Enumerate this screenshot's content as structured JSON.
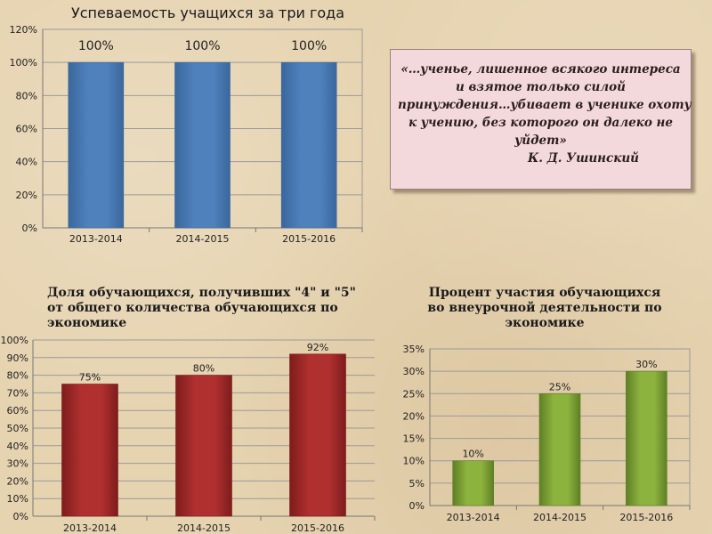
{
  "quote": {
    "lines": [
      "«…ученье, лишенное всякого интереса",
      "и взятое только силой",
      "принуждения…убивает в ученике охоту",
      "к учению, без которого он далеко не",
      "уйдет»"
    ],
    "author": "К. Д. Ушинский"
  },
  "chart_data": [
    {
      "type": "bar",
      "title": "Успеваемость учащихся за три года",
      "categories": [
        "2013-2014",
        "2014-2015",
        "2015-2016"
      ],
      "values": [
        100,
        100,
        100
      ],
      "data_labels": [
        "100%",
        "100%",
        "100%"
      ],
      "yticks": [
        "0%",
        "20%",
        "40%",
        "60%",
        "80%",
        "100%",
        "120%"
      ],
      "ylim": [
        0,
        120
      ],
      "grid": true,
      "color": "#4f81bd",
      "color_dark": "#3a679c"
    },
    {
      "type": "bar",
      "title": [
        "Доля обучающихся, получивших \"4\" и \"5\"",
        "от общего количества обучающихся по",
        "экономике"
      ],
      "categories": [
        "2013-2014",
        "2014-2015",
        "2015-2016"
      ],
      "values": [
        75,
        80,
        92
      ],
      "data_labels": [
        "75%",
        "80%",
        "92%"
      ],
      "yticks": [
        "0%",
        "10%",
        "20%",
        "30%",
        "40%",
        "50%",
        "60%",
        "70%",
        "80%",
        "90%",
        "100%"
      ],
      "ylim": [
        0,
        100
      ],
      "grid": true,
      "color": "#b03030",
      "color_dark": "#7e1c1c"
    },
    {
      "type": "bar",
      "title": [
        "Процент участия обучающихся",
        "во внеурочной деятельности по",
        "экономике"
      ],
      "categories": [
        "2013-2014",
        "2014-2015",
        "2015-2016"
      ],
      "values": [
        10,
        25,
        30
      ],
      "data_labels": [
        "10%",
        "25%",
        "30%"
      ],
      "yticks": [
        "0%",
        "5%",
        "10%",
        "15%",
        "20%",
        "25%",
        "30%",
        "35%"
      ],
      "ylim": [
        0,
        35
      ],
      "grid": true,
      "color": "#8db33f",
      "color_dark": "#5f7f25"
    }
  ]
}
